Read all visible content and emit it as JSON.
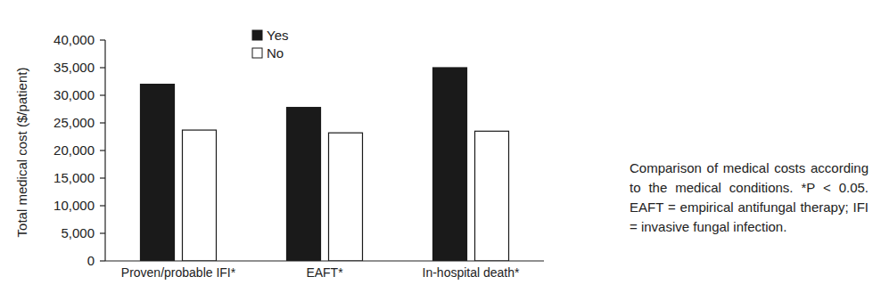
{
  "chart_data": {
    "type": "bar",
    "y_label": "Total medical cost ($/patient)",
    "annotations": [
      "Comparison of medical costs according to the medical conditions. *P < 0.05. EAFT = empirical antifungal therapy; IFI = invasive fungal infection."
    ],
    "categories": [
      "Proven/probable IFI*",
      "EAFT*",
      "In-hospital death*"
    ],
    "series": [
      {
        "name": "Yes",
        "color": "#1a1a1a",
        "values": [
          32000,
          27800,
          35000
        ]
      },
      {
        "name": "No",
        "color": "#ffffff",
        "values": [
          23700,
          23200,
          23500
        ]
      }
    ],
    "ylim": [
      0,
      40000
    ],
    "yticks": [
      0,
      {
        "value": 5000,
        "label": "5,000"
      },
      {
        "value": 10000,
        "label": "10,000"
      },
      {
        "value": 15000,
        "label": "15,000"
      },
      {
        "value": 20000,
        "label": "20,000"
      },
      {
        "value": 25000,
        "label": "25,000"
      },
      {
        "value": 30000,
        "label": "30,000"
      },
      {
        "value": 35000,
        "label": "35,000"
      },
      {
        "value": 40000,
        "label": "40,000"
      }
    ],
    "legend": "top",
    "grid": false
  }
}
